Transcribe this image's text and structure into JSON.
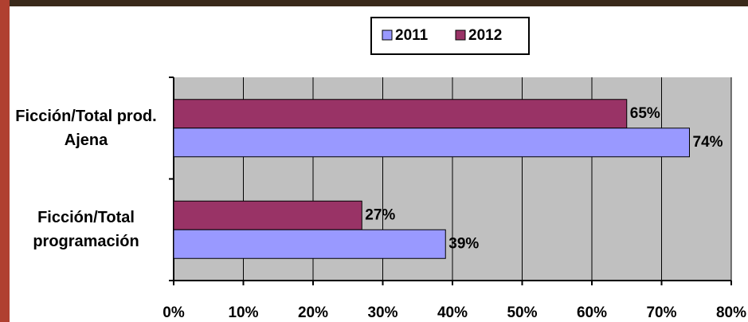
{
  "chart_data": {
    "type": "bar",
    "orientation": "horizontal",
    "categories": [
      "Ficción/Total prod. Ajena",
      "Ficción/Total programación"
    ],
    "series": [
      {
        "name": "2011",
        "color": "#9999ff",
        "values": [
          74,
          39
        ],
        "value_labels": [
          "74%",
          "39%"
        ]
      },
      {
        "name": "2012",
        "color": "#993366",
        "values": [
          65,
          27
        ],
        "value_labels": [
          "65%",
          "27%"
        ]
      }
    ],
    "xlim": [
      0,
      80
    ],
    "xticks": [
      {
        "value": 0,
        "label": "0%"
      },
      {
        "value": 10,
        "label": "10%"
      },
      {
        "value": 20,
        "label": "20%"
      },
      {
        "value": 30,
        "label": "30%"
      },
      {
        "value": 40,
        "label": "40%"
      },
      {
        "value": 50,
        "label": "50%"
      },
      {
        "value": 60,
        "label": "60%"
      },
      {
        "value": 70,
        "label": "70%"
      },
      {
        "value": 80,
        "label": "80%"
      }
    ],
    "grid": true,
    "legend": "top"
  }
}
